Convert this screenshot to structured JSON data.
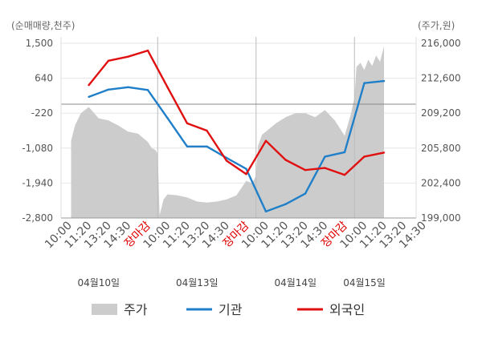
{
  "chart_data": {
    "type": "line",
    "left_axis": {
      "unit_label": "(순매매량,천주)",
      "ticks": [
        "1,500",
        "640",
        "-220",
        "-1,080",
        "-1,940",
        "-2,800"
      ],
      "range": [
        -2800,
        1500
      ]
    },
    "right_axis": {
      "unit_label": "(주가,원)",
      "ticks": [
        "216,000",
        "212,600",
        "209,200",
        "205,800",
        "202,400",
        "199,000"
      ],
      "range": [
        199000,
        216000
      ]
    },
    "x_ticks": [
      {
        "label": "10:00",
        "color": "#555555"
      },
      {
        "label": "11:20",
        "color": "#555555"
      },
      {
        "label": "13:20",
        "color": "#555555"
      },
      {
        "label": "14:30",
        "color": "#555555"
      },
      {
        "label": "장마감",
        "color": "#e00000"
      },
      {
        "label": "10:00",
        "color": "#555555"
      },
      {
        "label": "11:20",
        "color": "#555555"
      },
      {
        "label": "13:20",
        "color": "#555555"
      },
      {
        "label": "14:30",
        "color": "#555555"
      },
      {
        "label": "장마감",
        "color": "#e00000"
      },
      {
        "label": "10:00",
        "color": "#555555"
      },
      {
        "label": "11:20",
        "color": "#555555"
      },
      {
        "label": "13:20",
        "color": "#555555"
      },
      {
        "label": "14:30",
        "color": "#555555"
      },
      {
        "label": "장마감",
        "color": "#e00000"
      },
      {
        "label": "10:00",
        "color": "#555555"
      },
      {
        "label": "11:20",
        "color": "#555555"
      },
      {
        "label": "13:20",
        "color": "#555555"
      },
      {
        "label": "14:30",
        "color": "#555555"
      }
    ],
    "dates": [
      {
        "label": "04월10일",
        "tick_index": 1.5
      },
      {
        "label": "04월13일",
        "tick_index": 6.5
      },
      {
        "label": "04월14일",
        "tick_index": 11.5
      },
      {
        "label": "04월15일",
        "tick_index": 15
      }
    ],
    "day_separators": [
      4.5,
      9.5,
      14.5
    ],
    "legend": [
      {
        "name": "주가",
        "color": "#cccccc",
        "shape": "box"
      },
      {
        "name": "기관",
        "color": "#1f7fc9",
        "shape": "line"
      },
      {
        "name": "외국인",
        "color": "#e01010",
        "shape": "line"
      }
    ],
    "series": [
      {
        "name": "기관",
        "color": "#1f7fc9",
        "axis": "left",
        "x": [
          1,
          2,
          3,
          4,
          5,
          6,
          7,
          8,
          9,
          10,
          11,
          12,
          13,
          14,
          15,
          16
        ],
        "values": [
          180,
          360,
          420,
          350,
          -340,
          -1040,
          -1040,
          -1320,
          -1590,
          -2640,
          -2460,
          -2200,
          -1290,
          -1180,
          520,
          570
        ]
      },
      {
        "name": "외국인",
        "color": "#e01010",
        "axis": "left",
        "x": [
          1,
          2,
          3,
          4,
          5,
          6,
          7,
          8,
          9,
          10,
          11,
          12,
          13,
          14,
          15,
          16
        ],
        "values": [
          470,
          1070,
          1170,
          1320,
          420,
          -470,
          -650,
          -1390,
          -1720,
          -900,
          -1370,
          -1620,
          -1570,
          -1740,
          -1290,
          -1190
        ]
      },
      {
        "name": "주가",
        "color": "#cccccc",
        "axis": "right",
        "x": [
          0.1,
          0.3,
          0.6,
          1.0,
          1.5,
          2.0,
          2.5,
          3.0,
          3.5,
          4.0,
          4.2,
          4.4,
          4.5,
          4.6,
          4.8,
          5.0,
          5.5,
          6.0,
          6.5,
          7.0,
          7.5,
          8.0,
          8.5,
          9.0,
          9.3,
          9.5,
          9.6,
          9.8,
          10.0,
          10.5,
          11.0,
          11.5,
          12.0,
          12.5,
          13.0,
          13.5,
          14.0,
          14.3,
          14.5,
          14.6,
          14.8,
          15.0,
          15.2,
          15.4,
          15.6,
          15.8,
          16.0
        ],
        "values": [
          206500,
          208000,
          209200,
          209800,
          208700,
          208500,
          208000,
          207400,
          207200,
          206400,
          205800,
          205600,
          205200,
          199300,
          200800,
          201300,
          201200,
          201000,
          200600,
          200500,
          200600,
          200800,
          201200,
          202600,
          202400,
          203100,
          206000,
          207100,
          207400,
          208200,
          208800,
          209200,
          209200,
          208800,
          209500,
          208500,
          207000,
          209000,
          210700,
          213700,
          214100,
          213400,
          214400,
          213800,
          214800,
          214200,
          215700
        ]
      }
    ]
  }
}
